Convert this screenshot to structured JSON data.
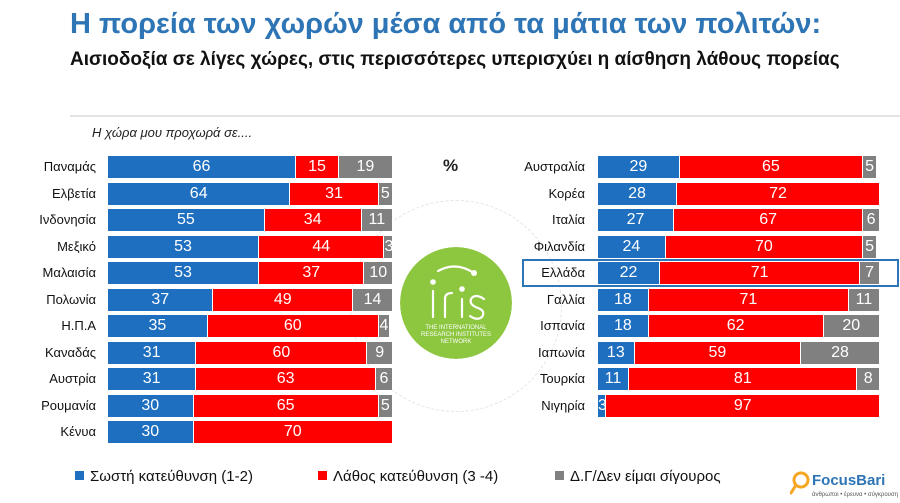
{
  "title": "Η πορεία των χωρών μέσα από τα μάτια των πολιτών:",
  "subtitle": "Αισιοδοξία σε λίγες χώρες, στις περισσότερες υπερισχύει η αίσθηση λάθους πορείας",
  "question": "Η χώρα μου προχωρά σε....",
  "percent_label": "%",
  "logo": {
    "name": "iris",
    "tagline": "THE INTERNATIONAL RESEARCH INSTITUTES NETWORK",
    "color": "#8DC63F"
  },
  "brand": {
    "name": "FocusBari",
    "tagline": "άνθρωποι • έρευνα • σύγκρουση",
    "color": "#2E75B6",
    "accent": "#F5A623"
  },
  "colors": {
    "right": "#1F6FC0",
    "wrong": "#FF0000",
    "dk": "#808080",
    "title": "#2E75B6"
  },
  "chart_data": {
    "type": "bar",
    "orientation": "horizontal-stacked",
    "series": [
      {
        "name": "Σωστή κατεύθυνση (1-2)",
        "color": "#1F6FC0"
      },
      {
        "name": "Λάθος κατεύθυνση (3 -4)",
        "color": "#FF0000"
      },
      {
        "name": "Δ.Γ/Δεν είμαι σίγουρος",
        "color": "#808080"
      }
    ],
    "left": [
      {
        "country": "Παναμάς",
        "values": [
          66,
          15,
          19
        ]
      },
      {
        "country": "Ελβετία",
        "values": [
          64,
          31,
          5
        ]
      },
      {
        "country": "Ινδονησία",
        "values": [
          55,
          34,
          11
        ]
      },
      {
        "country": "Μεξικό",
        "values": [
          53,
          44,
          3
        ]
      },
      {
        "country": "Μαλαισία",
        "values": [
          53,
          37,
          10
        ]
      },
      {
        "country": "Πολωνία",
        "values": [
          37,
          49,
          14
        ]
      },
      {
        "country": "Η.Π.Α",
        "values": [
          35,
          60,
          4
        ]
      },
      {
        "country": "Καναδάς",
        "values": [
          31,
          60,
          9
        ]
      },
      {
        "country": "Αυστρία",
        "values": [
          31,
          63,
          6
        ]
      },
      {
        "country": "Ρουμανία",
        "values": [
          30,
          65,
          5
        ]
      },
      {
        "country": "Κένυα",
        "values": [
          30,
          70,
          null
        ]
      }
    ],
    "right": [
      {
        "country": "Αυστραλία",
        "values": [
          29,
          65,
          5
        ]
      },
      {
        "country": "Κορέα",
        "values": [
          28,
          72,
          null
        ]
      },
      {
        "country": "Ιταλία",
        "values": [
          27,
          67,
          6
        ]
      },
      {
        "country": "Φιλανδία",
        "values": [
          24,
          70,
          5
        ]
      },
      {
        "country": "Ελλάδα",
        "values": [
          22,
          71,
          7
        ],
        "highlight": true
      },
      {
        "country": "Γαλλία",
        "values": [
          18,
          71,
          11
        ]
      },
      {
        "country": "Ισπανία",
        "values": [
          18,
          62,
          20
        ]
      },
      {
        "country": "Ιαπωνία",
        "values": [
          13,
          59,
          28
        ]
      },
      {
        "country": "Τουρκία",
        "values": [
          11,
          81,
          8
        ]
      },
      {
        "country": "Νιγηρία",
        "values": [
          3,
          97,
          null
        ]
      }
    ],
    "xlim": [
      0,
      100
    ]
  }
}
